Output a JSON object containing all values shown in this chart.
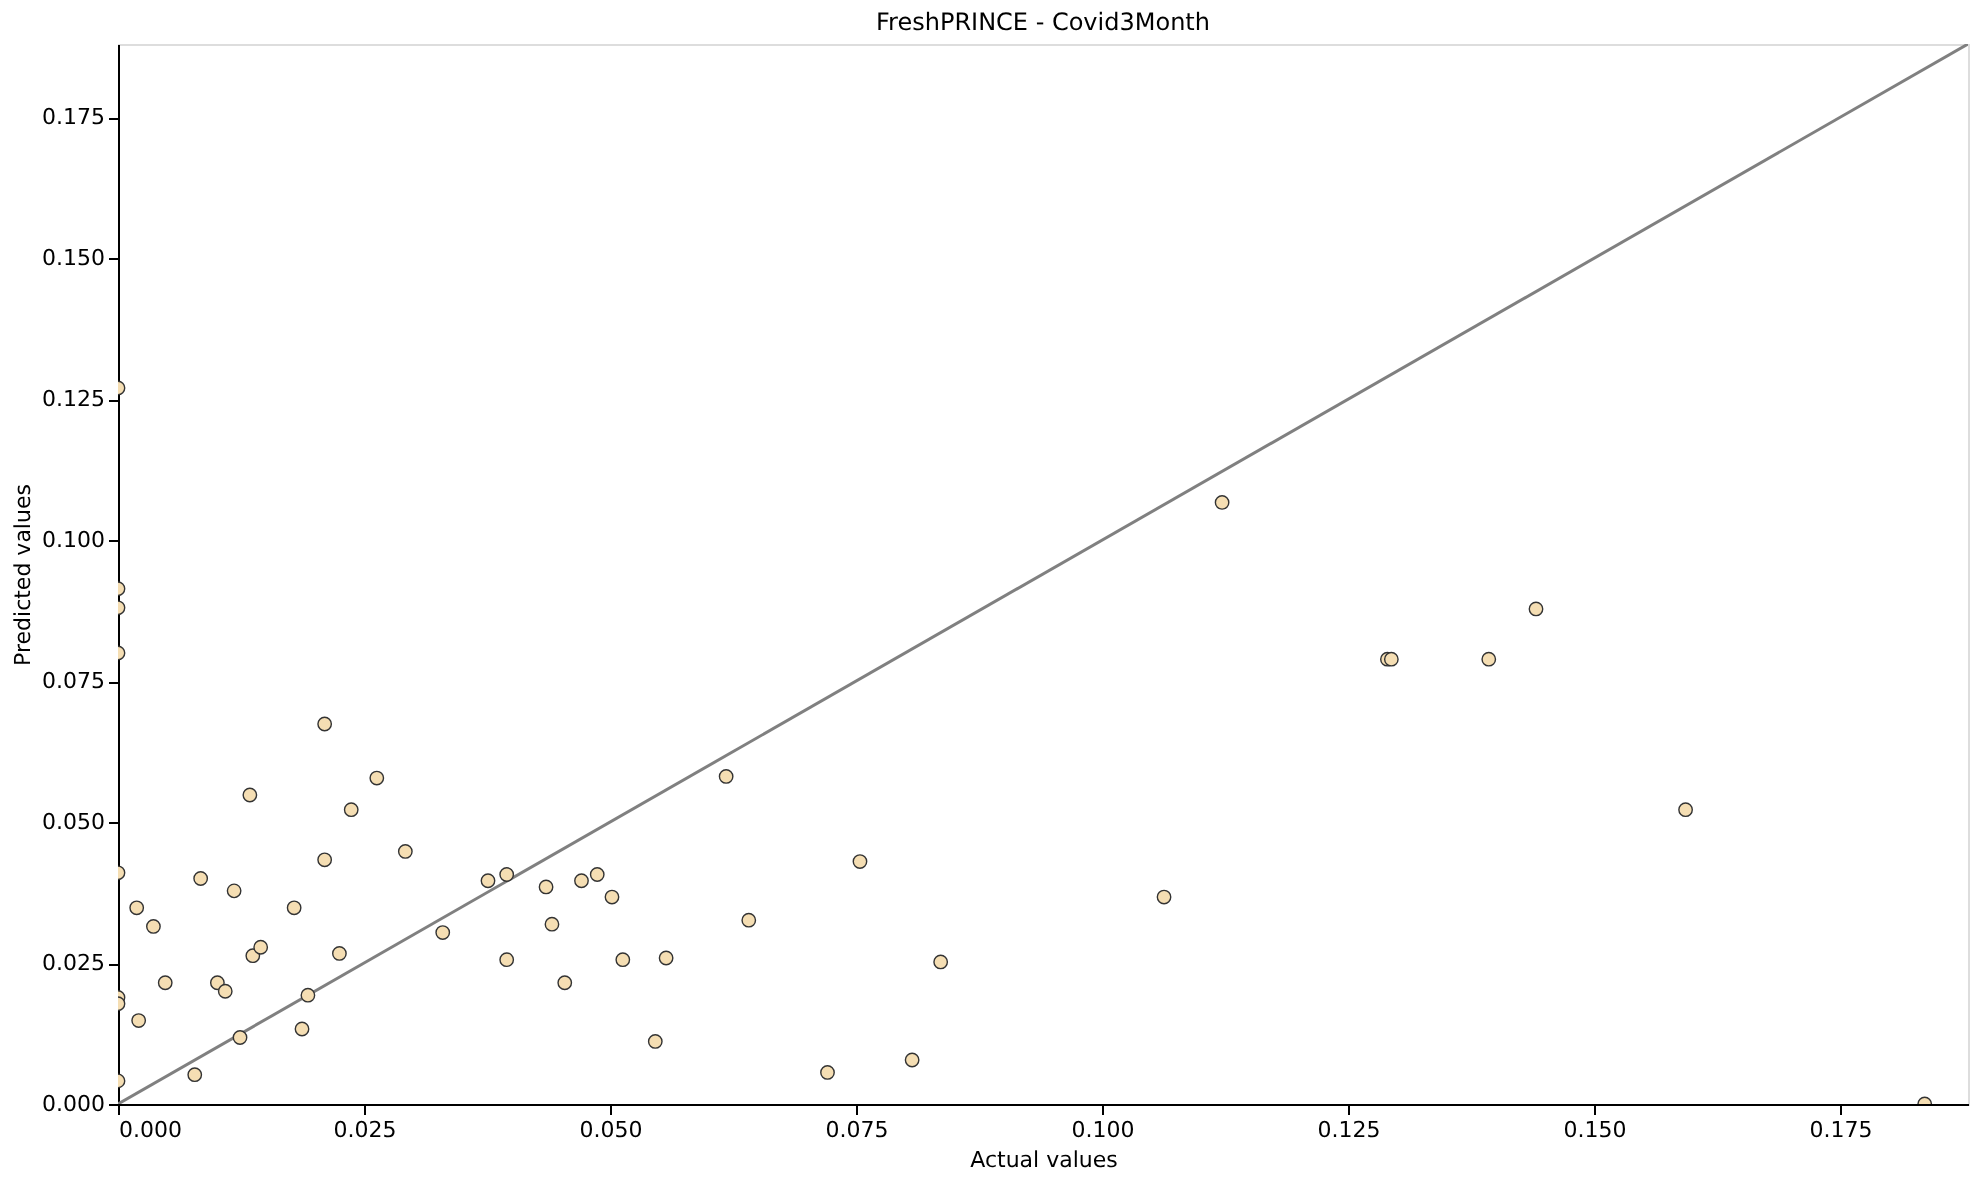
{
  "chart_data": {
    "type": "scatter",
    "title": "FreshPRINCE - Covid3Month",
    "xlabel": "Actual values",
    "ylabel": "Predicted values",
    "xlim": [
      0,
      0.188
    ],
    "ylim": [
      0,
      0.188
    ],
    "xticks": [
      {
        "value": 0,
        "label": "0.000"
      },
      0.025,
      {
        "value": 0.05,
        "label": "0.050"
      },
      0.075,
      {
        "value": 0.1,
        "label": "0.100"
      },
      0.125,
      {
        "value": 0.15,
        "label": "0.150"
      },
      0.175
    ],
    "yticks": [
      {
        "value": 0,
        "label": "0.000"
      },
      0.025,
      {
        "value": 0.05,
        "label": "0.050"
      },
      0.075,
      {
        "value": 0.1,
        "label": "0.100"
      },
      0.125,
      {
        "value": 0.15,
        "label": "0.150"
      },
      0.175
    ],
    "grid": false,
    "marker": "circle",
    "series": [
      {
        "color": "#f5deb3",
        "x": [
          0,
          0,
          0,
          0,
          0,
          0,
          0,
          0,
          0.0019,
          0.0036,
          0.0021,
          0.0048,
          0.0078,
          0.0084,
          0.0101,
          0.0109,
          0.0118,
          0.0124,
          0.0134,
          0.0137,
          0.0145,
          0.0179,
          0.0187,
          0.0193,
          0.021,
          0.021,
          0.0225,
          0.0237,
          0.0263,
          0.0292,
          0.033,
          0.0376,
          0.0395,
          0.0395,
          0.0435,
          0.0441,
          0.0454,
          0.0471,
          0.0487,
          0.0502,
          0.0513,
          0.0546,
          0.0557,
          0.0618,
          0.0641,
          0.0721,
          0.0754,
          0.0807,
          0.0836,
          0.1063,
          0.1122,
          0.129,
          0.1294,
          0.1393,
          0.1441,
          0.1593,
          0.1836
        ],
        "values": [
          0.127,
          0.0914,
          0.088,
          0.08,
          0.041,
          0.0189,
          0.0178,
          0.0041,
          0.0348,
          0.0315,
          0.0148,
          0.0215,
          0.0052,
          0.04,
          0.0215,
          0.02,
          0.0378,
          0.0118,
          0.0548,
          0.0263,
          0.0278,
          0.0348,
          0.0133,
          0.0193,
          0.0674,
          0.0433,
          0.0267,
          0.0522,
          0.0578,
          0.0448,
          0.0304,
          0.0396,
          0.0407,
          0.0256,
          0.0385,
          0.0319,
          0.0215,
          0.0396,
          0.0407,
          0.0367,
          0.0256,
          0.0111,
          0.0259,
          0.0581,
          0.0326,
          0.0056,
          0.043,
          0.0078,
          0.0252,
          0.0367,
          0.1067,
          0.0789,
          0.0789,
          0.0789,
          0.0878,
          0.0522,
          0
        ]
      },
      {
        "type": "line",
        "color": "#808080",
        "x": [
          0,
          0.188
        ],
        "values": [
          0,
          0.188
        ],
        "line_style": "solid",
        "marker": "none"
      }
    ]
  }
}
